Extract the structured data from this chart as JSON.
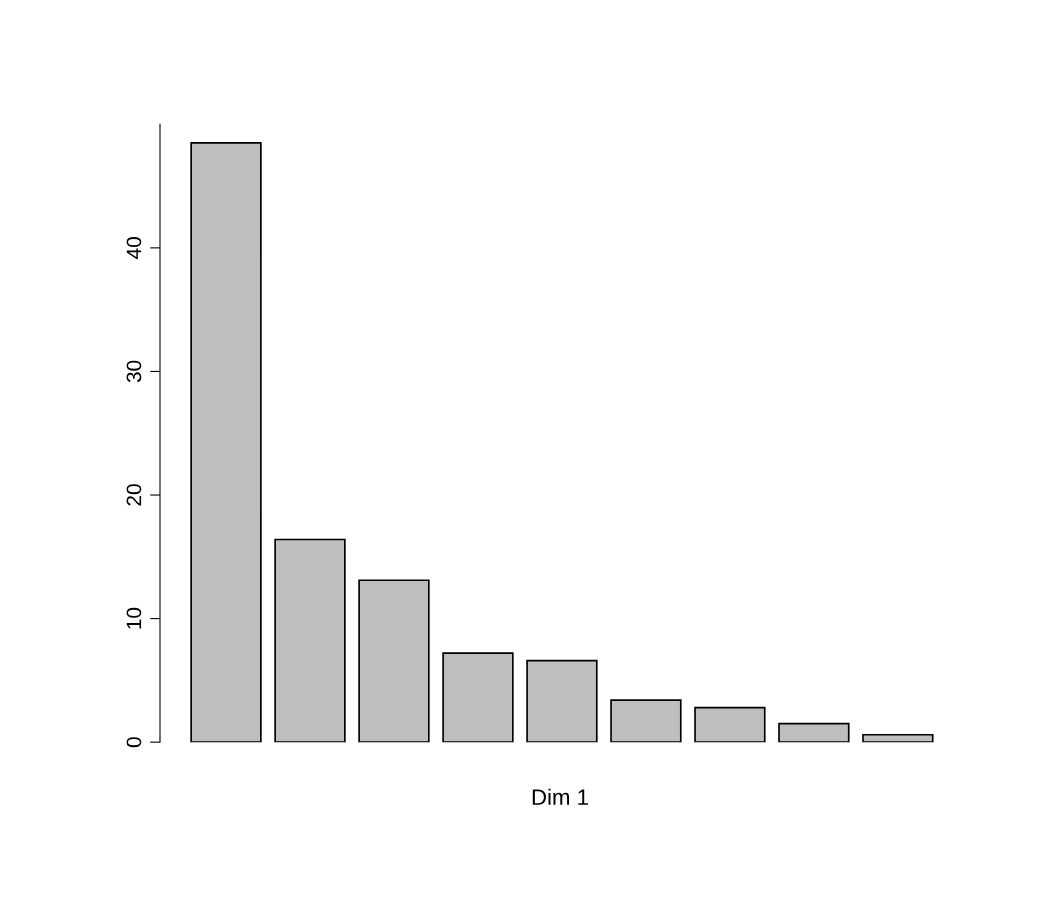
{
  "chart_data": {
    "type": "bar",
    "xlabel": "Dim 1",
    "categories": [
      null,
      null,
      null,
      null,
      null,
      null,
      null,
      null,
      null
    ],
    "values": [
      48.5,
      16.4,
      13.1,
      7.2,
      6.6,
      3.4,
      2.8,
      1.5,
      0.6
    ],
    "color": "#bebebe",
    "ylim": [
      0,
      50
    ],
    "yticks": [
      0,
      10,
      20,
      30,
      40
    ],
    "grid": false,
    "legend": false
  }
}
